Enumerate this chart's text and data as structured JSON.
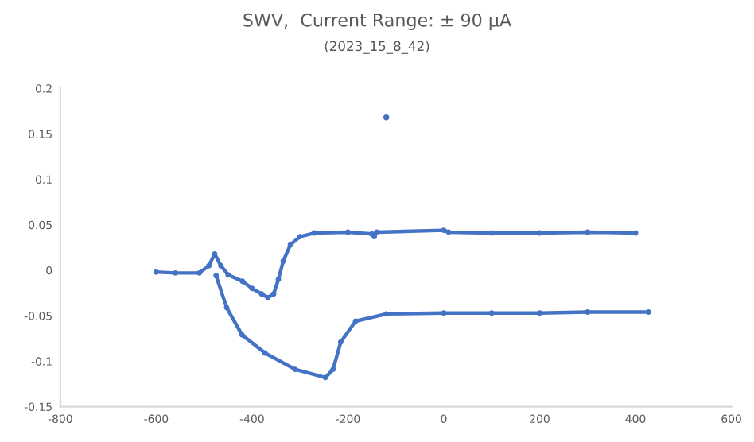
{
  "chart_data": {
    "type": "line",
    "title": "SWV,  Current Range: ± 90 µA",
    "subtitle": "(2023_15_8_42)",
    "xlim": [
      -800,
      600
    ],
    "xticks": [
      -800,
      -600,
      -400,
      -200,
      0,
      200,
      400,
      600
    ],
    "ylim": [
      -0.15,
      0.2
    ],
    "yticks": [
      -0.15,
      -0.1,
      -0.05,
      0,
      0.05,
      0.1,
      0.15,
      0.2
    ],
    "grid": false,
    "legend": false,
    "marker": "circle",
    "line_style": "solid",
    "series": [
      {
        "color": "#4472c4",
        "x": [
          -600,
          -560,
          -510,
          -490,
          -478,
          -465,
          -450,
          -420,
          -400,
          -380,
          -367,
          -355,
          -345,
          -335,
          -320,
          -300,
          -270,
          -200,
          -150,
          -145,
          -140,
          0,
          10,
          100,
          200,
          300,
          400
        ],
        "values": [
          -0.002,
          -0.003,
          -0.003,
          0.005,
          0.018,
          0.005,
          -0.005,
          -0.012,
          -0.02,
          -0.026,
          -0.03,
          -0.026,
          -0.01,
          0.01,
          0.028,
          0.037,
          0.041,
          0.042,
          0.04,
          0.037,
          0.042,
          0.044,
          0.042,
          0.041,
          0.041,
          0.042,
          0.041
        ]
      },
      {
        "color": "#4472c4",
        "x": [
          -475,
          -453,
          -421,
          -373,
          -310,
          -247,
          -231,
          -215,
          -184,
          -120,
          0,
          100,
          200,
          300,
          427
        ],
        "values": [
          -0.006,
          -0.041,
          -0.071,
          -0.091,
          -0.109,
          -0.118,
          -0.109,
          -0.079,
          -0.056,
          -0.048,
          -0.047,
          -0.047,
          -0.047,
          -0.046,
          -0.046
        ]
      },
      {
        "type": "scatter",
        "color": "#4472c4",
        "x": [
          -120
        ],
        "values": [
          0.168
        ]
      }
    ]
  }
}
